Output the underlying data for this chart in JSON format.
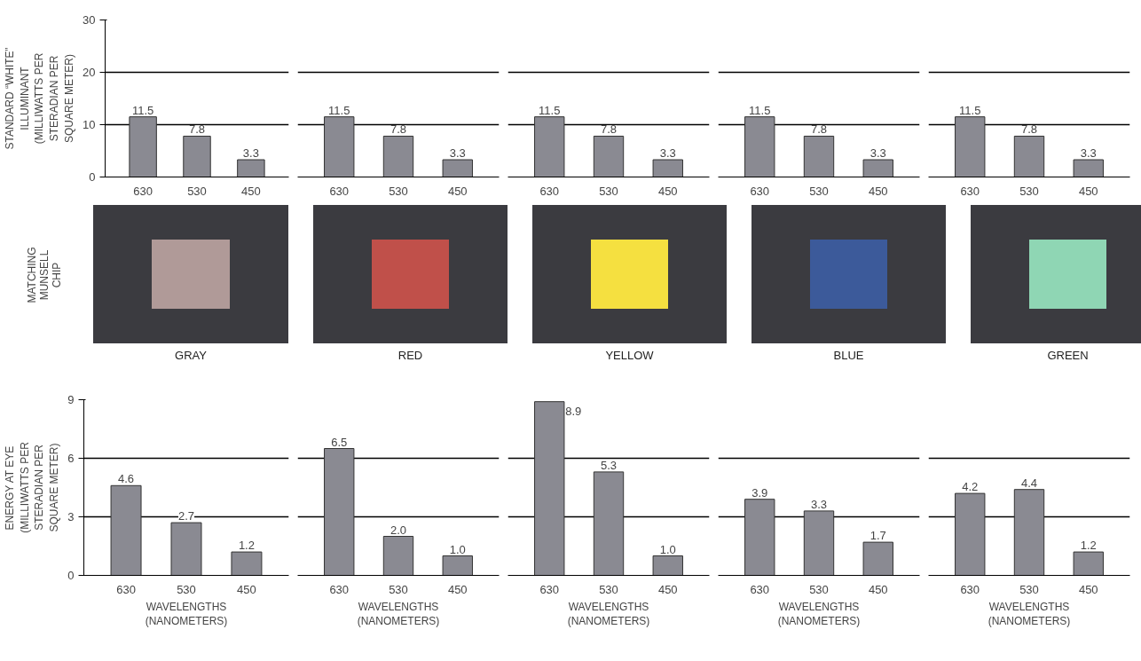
{
  "chart_data": [
    {
      "type": "bar",
      "ylabel": "STANDARD “WHITE”\nILLUMINANT\n(MILLIWATTS PER\nSTERADIAN PER\nSQUARE METER)",
      "categories": [
        "630",
        "530",
        "450"
      ],
      "values": [
        11.5,
        7.8,
        3.3
      ],
      "color": "#8a8a92",
      "value_labels": [
        "11.5",
        "7.8",
        "3.3"
      ],
      "ylim": [
        0,
        30
      ],
      "yticks": [
        0,
        10,
        20,
        30
      ],
      "grid": "y"
    },
    {
      "type": "bar",
      "categories": [
        "630",
        "530",
        "450"
      ],
      "values": [
        11.5,
        7.8,
        3.3
      ],
      "color": "#8a8a92",
      "value_labels": [
        "11.5",
        "7.8",
        "3.3"
      ],
      "ylim": [
        0,
        30
      ],
      "yticks": [
        0,
        10,
        20,
        30
      ],
      "grid": "y",
      "tick_labels": "x"
    },
    {
      "type": "bar",
      "categories": [
        "630",
        "530",
        "450"
      ],
      "values": [
        11.5,
        7.8,
        3.3
      ],
      "color": "#8a8a92",
      "value_labels": [
        "11.5",
        "7.8",
        "3.3"
      ],
      "ylim": [
        0,
        30
      ],
      "yticks": [
        0,
        10,
        20,
        30
      ],
      "grid": "y",
      "tick_labels": "x"
    },
    {
      "type": "bar",
      "categories": [
        "630",
        "530",
        "450"
      ],
      "values": [
        11.5,
        7.8,
        3.3
      ],
      "color": "#8a8a92",
      "value_labels": [
        "11.5",
        "7.8",
        "3.3"
      ],
      "ylim": [
        0,
        30
      ],
      "yticks": [
        0,
        10,
        20,
        30
      ],
      "grid": "y",
      "tick_labels": "x"
    },
    {
      "type": "bar",
      "categories": [
        "630",
        "530",
        "450"
      ],
      "values": [
        11.5,
        7.8,
        3.3
      ],
      "color": "#8a8a92",
      "value_labels": [
        "11.5",
        "7.8",
        "3.3"
      ],
      "ylim": [
        0,
        30
      ],
      "yticks": [
        0,
        10,
        20,
        30
      ],
      "grid": "y",
      "tick_labels": "x"
    },
    {
      "type": "other",
      "ylabel": "MATCHING\nMUNSELL\nCHIP",
      "xlabel": "GRAY",
      "color": "#b09a98"
    },
    {
      "type": "other",
      "xlabel": "RED",
      "color": "#c0504a"
    },
    {
      "type": "other",
      "xlabel": "YELLOW",
      "color": "#f5e040"
    },
    {
      "type": "other",
      "xlabel": "BLUE",
      "color": "#3c5a9a"
    },
    {
      "type": "other",
      "xlabel": "GREEN",
      "color": "#8fd6b4"
    },
    {
      "type": "bar",
      "ylabel": "ENERGY AT EYE\n(MILLIWATTS PER\nSTERADIAN PER\nSQUARE METER)",
      "xlabel": "WAVELENGTHS\n(NANOMETERS)",
      "categories": [
        "630",
        "530",
        "450"
      ],
      "values": [
        4.6,
        2.7,
        1.2
      ],
      "color": "#8a8a92",
      "value_labels": [
        "4.6",
        "2.7",
        "1.2"
      ],
      "ylim": [
        0,
        9
      ],
      "yticks": [
        0,
        3,
        6,
        9
      ],
      "grid": "y"
    },
    {
      "type": "bar",
      "xlabel": "WAVELENGTHS\n(NANOMETERS)",
      "categories": [
        "630",
        "530",
        "450"
      ],
      "values": [
        6.5,
        2.0,
        1.0
      ],
      "color": "#8a8a92",
      "value_labels": [
        "6.5",
        "2.0",
        "1.0"
      ],
      "ylim": [
        0,
        9
      ],
      "yticks": [
        0,
        3,
        6,
        9
      ],
      "grid": "y",
      "tick_labels": "x"
    },
    {
      "type": "bar",
      "xlabel": "WAVELENGTHS\n(NANOMETERS)",
      "categories": [
        "630",
        "530",
        "450"
      ],
      "values": [
        8.9,
        5.3,
        1.0
      ],
      "color": "#8a8a92",
      "value_labels": [
        "8.9",
        "5.3",
        "1.0"
      ],
      "ylim": [
        0,
        9
      ],
      "yticks": [
        0,
        3,
        6,
        9
      ],
      "grid": "y",
      "tick_labels": "x"
    },
    {
      "type": "bar",
      "xlabel": "WAVELENGTHS\n(NANOMETERS)",
      "categories": [
        "630",
        "530",
        "450"
      ],
      "values": [
        3.9,
        3.3,
        1.7
      ],
      "color": "#8a8a92",
      "value_labels": [
        "3.9",
        "3.3",
        "1.7"
      ],
      "ylim": [
        0,
        9
      ],
      "yticks": [
        0,
        3,
        6,
        9
      ],
      "grid": "y",
      "tick_labels": "x"
    },
    {
      "type": "bar",
      "xlabel": "WAVELENGTHS\n(NANOMETERS)",
      "categories": [
        "630",
        "530",
        "450"
      ],
      "values": [
        4.2,
        4.4,
        1.2
      ],
      "color": "#8a8a92",
      "value_labels": [
        "4.2",
        "4.4",
        "1.2"
      ],
      "ylim": [
        0,
        9
      ],
      "yticks": [
        0,
        3,
        6,
        9
      ],
      "grid": "y",
      "tick_labels": "x"
    }
  ]
}
